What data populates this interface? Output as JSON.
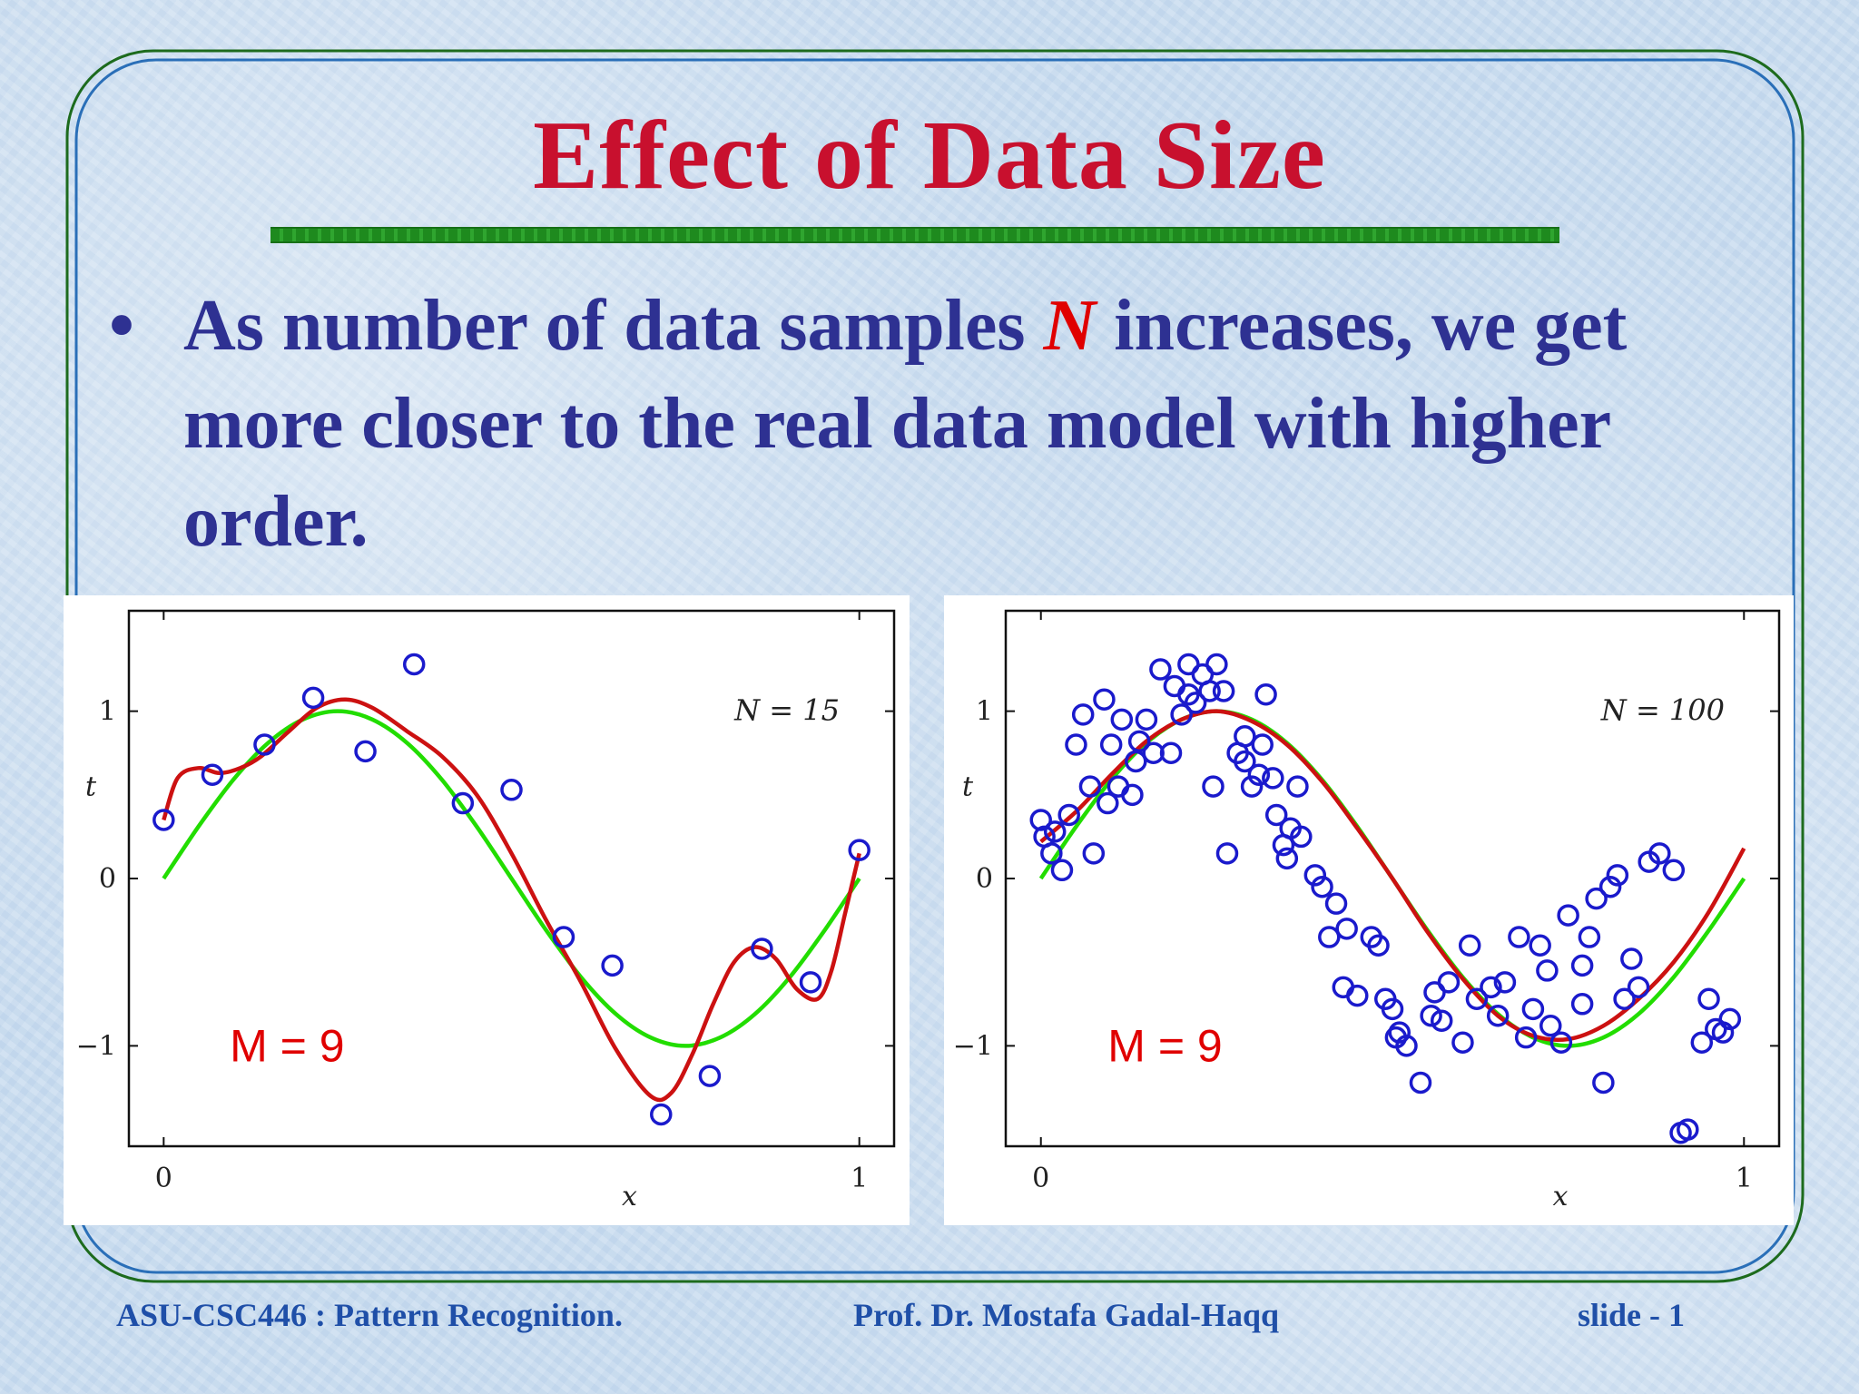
{
  "slide": {
    "title": "Effect of Data Size",
    "bullet_mark": "•",
    "bullet_part1": "As number of data samples ",
    "bullet_var": "N",
    "bullet_part2": " increases, we get more closer to the real data model with higher order."
  },
  "footer": {
    "course": "ASU-CSC446 :  Pattern Recognition.",
    "author": "Prof. Dr. Mostafa Gadal-Haqq",
    "slide_no": "slide - 1"
  },
  "colors": {
    "title": "#c8102e",
    "bullet_text": "#2e3192",
    "footer_text": "#1f4fa8",
    "rule": "#1e8a1e",
    "true_curve": "#22dd00",
    "fit_curve": "#cc1111",
    "points": "#1a1acc",
    "m_label": "#e00000"
  },
  "chart_data": [
    {
      "type": "scatter",
      "annotation": "N = 15",
      "model_label": "M = 9",
      "xlabel": "x",
      "ylabel": "t",
      "x_ticks": [
        "0",
        "1"
      ],
      "y_ticks": [
        "−1",
        "0",
        "1"
      ],
      "xlim": [
        -0.05,
        1.05
      ],
      "ylim": [
        -1.6,
        1.6
      ],
      "legend": "none",
      "series": [
        {
          "kind": "points",
          "x": [
            0.0,
            0.07,
            0.145,
            0.215,
            0.29,
            0.36,
            0.43,
            0.5,
            0.575,
            0.645,
            0.715,
            0.785,
            0.86,
            0.93,
            1.0
          ],
          "y": [
            0.35,
            0.62,
            0.8,
            1.08,
            0.76,
            1.28,
            0.45,
            0.53,
            -0.35,
            -0.52,
            -1.41,
            -1.18,
            -0.42,
            -0.62,
            0.17
          ]
        },
        {
          "kind": "true_curve",
          "x": [
            0,
            0.05,
            0.1,
            0.15,
            0.2,
            0.25,
            0.3,
            0.35,
            0.4,
            0.45,
            0.5,
            0.55,
            0.6,
            0.65,
            0.7,
            0.75,
            0.8,
            0.85,
            0.9,
            0.95,
            1
          ],
          "y": [
            0,
            0.31,
            0.59,
            0.81,
            0.95,
            1,
            0.95,
            0.81,
            0.59,
            0.31,
            0,
            -0.31,
            -0.59,
            -0.81,
            -0.95,
            -1,
            -0.95,
            -0.81,
            -0.59,
            -0.31,
            0
          ]
        },
        {
          "kind": "fit_curve",
          "x": [
            0,
            0.02,
            0.05,
            0.08,
            0.11,
            0.14,
            0.18,
            0.22,
            0.26,
            0.3,
            0.35,
            0.4,
            0.45,
            0.5,
            0.55,
            0.6,
            0.65,
            0.7,
            0.73,
            0.76,
            0.79,
            0.82,
            0.85,
            0.88,
            0.91,
            0.94,
            0.96,
            0.98,
            1
          ],
          "y": [
            0.35,
            0.6,
            0.66,
            0.63,
            0.66,
            0.73,
            0.88,
            1.02,
            1.07,
            1.02,
            0.88,
            0.73,
            0.5,
            0.15,
            -0.25,
            -0.62,
            -1.02,
            -1.3,
            -1.28,
            -1.05,
            -0.75,
            -0.5,
            -0.41,
            -0.48,
            -0.66,
            -0.72,
            -0.55,
            -0.2,
            0.15
          ]
        }
      ]
    },
    {
      "type": "scatter",
      "annotation": "N = 100",
      "model_label": "M = 9",
      "xlabel": "x",
      "ylabel": "t",
      "x_ticks": [
        "0",
        "1"
      ],
      "y_ticks": [
        "−1",
        "0",
        "1"
      ],
      "xlim": [
        -0.05,
        1.05
      ],
      "ylim": [
        -1.6,
        1.6
      ],
      "legend": "none",
      "series": [
        {
          "kind": "points",
          "x": [
            0.0,
            0.005,
            0.015,
            0.02,
            0.03,
            0.04,
            0.05,
            0.06,
            0.07,
            0.075,
            0.09,
            0.095,
            0.1,
            0.11,
            0.115,
            0.13,
            0.135,
            0.14,
            0.15,
            0.16,
            0.17,
            0.185,
            0.19,
            0.2,
            0.21,
            0.21,
            0.22,
            0.23,
            0.24,
            0.245,
            0.25,
            0.26,
            0.265,
            0.28,
            0.29,
            0.29,
            0.3,
            0.31,
            0.315,
            0.32,
            0.33,
            0.335,
            0.345,
            0.35,
            0.355,
            0.365,
            0.37,
            0.39,
            0.4,
            0.41,
            0.42,
            0.43,
            0.435,
            0.45,
            0.47,
            0.48,
            0.49,
            0.5,
            0.505,
            0.51,
            0.52,
            0.54,
            0.555,
            0.56,
            0.57,
            0.58,
            0.6,
            0.61,
            0.62,
            0.64,
            0.65,
            0.66,
            0.68,
            0.69,
            0.7,
            0.71,
            0.72,
            0.725,
            0.74,
            0.75,
            0.77,
            0.77,
            0.78,
            0.79,
            0.8,
            0.81,
            0.82,
            0.83,
            0.84,
            0.85,
            0.865,
            0.88,
            0.9,
            0.91,
            0.92,
            0.94,
            0.95,
            0.96,
            0.97,
            0.98
          ],
          "y": [
            0.35,
            0.25,
            0.15,
            0.28,
            0.05,
            0.38,
            0.8,
            0.98,
            0.55,
            0.15,
            1.07,
            0.45,
            0.8,
            0.55,
            0.95,
            0.5,
            0.7,
            0.82,
            0.95,
            0.75,
            1.25,
            0.75,
            1.15,
            0.98,
            1.28,
            1.1,
            1.05,
            1.22,
            1.12,
            0.55,
            1.28,
            1.12,
            0.15,
            0.75,
            0.7,
            0.85,
            0.55,
            0.62,
            0.8,
            1.1,
            0.6,
            0.38,
            0.2,
            0.12,
            0.3,
            0.55,
            0.25,
            0.02,
            -0.05,
            -0.35,
            -0.15,
            -0.65,
            -0.3,
            -0.7,
            -0.35,
            -0.4,
            -0.72,
            -0.78,
            -0.95,
            -0.92,
            -1.0,
            -1.22,
            -0.82,
            -0.68,
            -0.85,
            -0.62,
            -0.98,
            -0.4,
            -0.72,
            -0.65,
            -0.82,
            -0.62,
            -0.35,
            -0.95,
            -0.78,
            -0.4,
            -0.55,
            -0.88,
            -0.98,
            -0.22,
            -0.75,
            -0.52,
            -0.35,
            -0.12,
            -1.22,
            -0.05,
            0.02,
            -0.72,
            -0.48,
            -0.65,
            0.1,
            0.15,
            0.05,
            -1.52,
            -1.5,
            -0.98,
            -0.72,
            -0.9,
            -0.92,
            -0.84
          ]
        },
        {
          "kind": "true_curve",
          "x": [
            0,
            0.05,
            0.1,
            0.15,
            0.2,
            0.25,
            0.3,
            0.35,
            0.4,
            0.45,
            0.5,
            0.55,
            0.6,
            0.65,
            0.7,
            0.75,
            0.8,
            0.85,
            0.9,
            0.95,
            1
          ],
          "y": [
            0,
            0.31,
            0.59,
            0.81,
            0.95,
            1,
            0.95,
            0.81,
            0.59,
            0.31,
            0,
            -0.31,
            -0.59,
            -0.81,
            -0.95,
            -1,
            -0.95,
            -0.81,
            -0.59,
            -0.31,
            0
          ]
        },
        {
          "kind": "fit_curve",
          "x": [
            0,
            0.05,
            0.1,
            0.15,
            0.2,
            0.25,
            0.3,
            0.35,
            0.4,
            0.45,
            0.5,
            0.55,
            0.6,
            0.65,
            0.7,
            0.75,
            0.8,
            0.85,
            0.9,
            0.95,
            1
          ],
          "y": [
            0.22,
            0.4,
            0.62,
            0.82,
            0.95,
            1.0,
            0.94,
            0.8,
            0.58,
            0.3,
            0.0,
            -0.32,
            -0.6,
            -0.82,
            -0.94,
            -0.96,
            -0.88,
            -0.72,
            -0.5,
            -0.2,
            0.18
          ]
        }
      ]
    }
  ]
}
